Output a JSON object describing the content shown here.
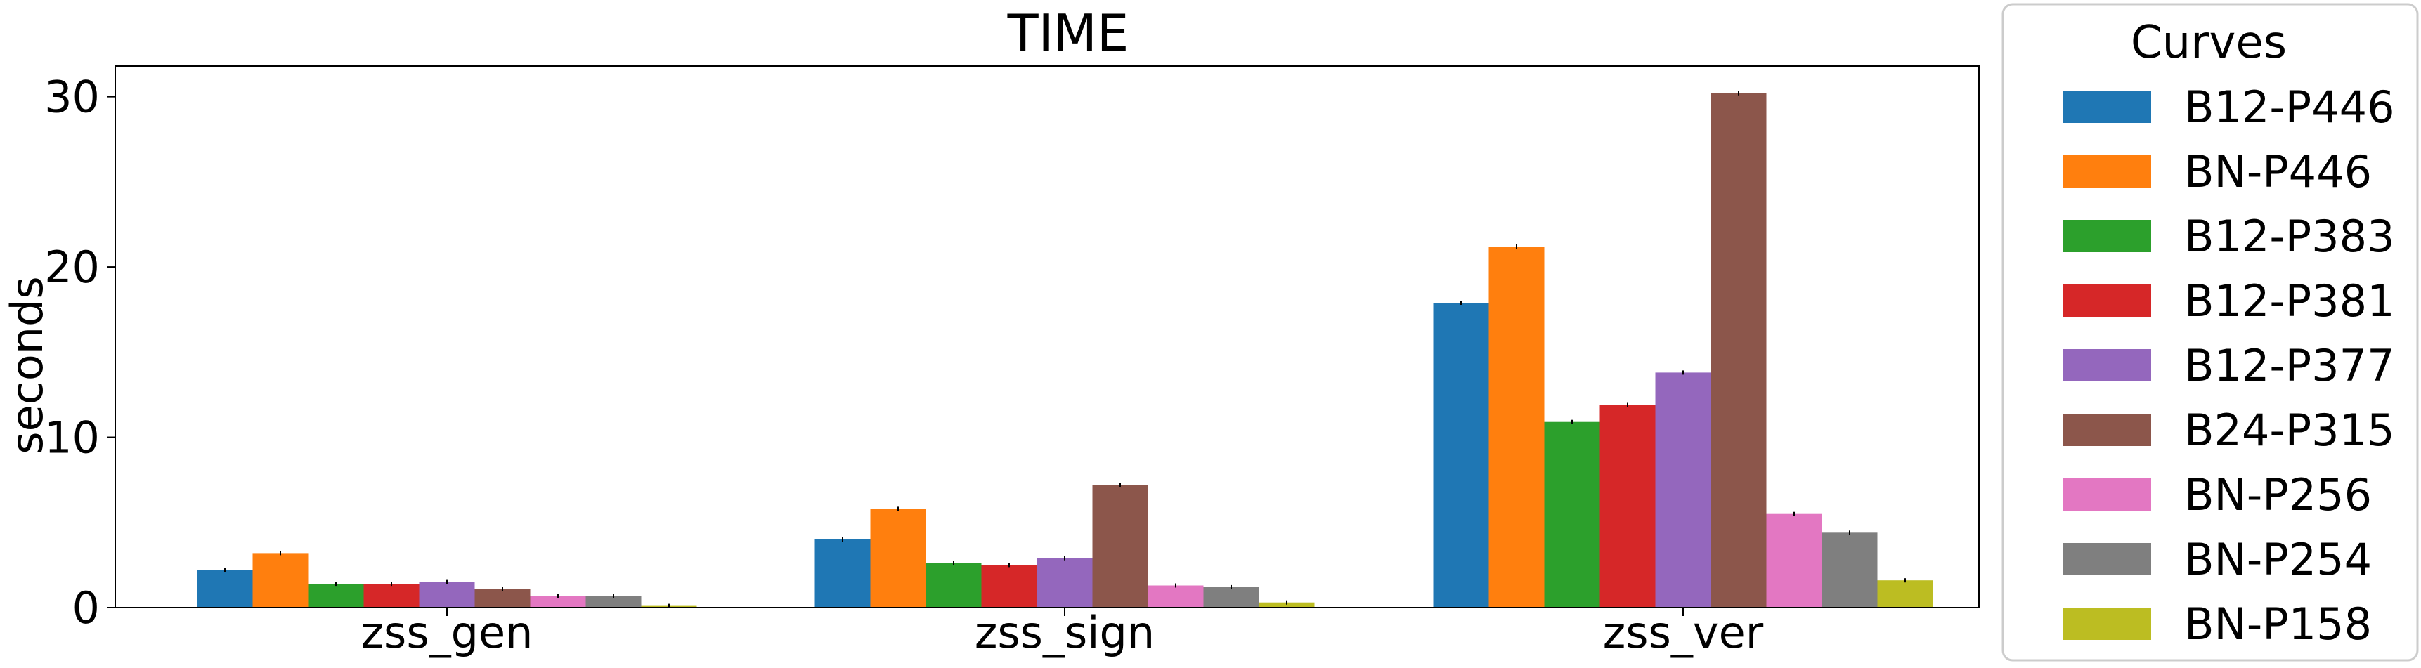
{
  "chart_data": {
    "type": "bar",
    "title": "TIME",
    "xlabel": "",
    "ylabel": "seconds",
    "ylim": [
      0,
      31.8
    ],
    "yticks": [
      0,
      10,
      20,
      30
    ],
    "categories": [
      "zss_gen",
      "zss_sign",
      "zss_ver"
    ],
    "legend": {
      "title": "Curves",
      "placement": "right-outside"
    },
    "grid": false,
    "series": [
      {
        "name": "B12-P446",
        "color": "#1f77b4",
        "values": [
          2.2,
          4.0,
          17.9
        ]
      },
      {
        "name": "BN-P446",
        "color": "#ff7f0e",
        "values": [
          3.2,
          5.8,
          21.2
        ]
      },
      {
        "name": "B12-P383",
        "color": "#2ca02c",
        "values": [
          1.4,
          2.6,
          10.9
        ]
      },
      {
        "name": "B12-P381",
        "color": "#d62728",
        "values": [
          1.4,
          2.5,
          11.9
        ]
      },
      {
        "name": "B12-P377",
        "color": "#9467bd",
        "values": [
          1.5,
          2.9,
          13.8
        ]
      },
      {
        "name": "B24-P315",
        "color": "#8c564b",
        "values": [
          1.1,
          7.2,
          30.2
        ]
      },
      {
        "name": "BN-P256",
        "color": "#e377c2",
        "values": [
          0.7,
          1.3,
          5.5
        ]
      },
      {
        "name": "BN-P254",
        "color": "#7f7f7f",
        "values": [
          0.7,
          1.2,
          4.4
        ]
      },
      {
        "name": "BN-P158",
        "color": "#bcbd22",
        "values": [
          0.1,
          0.3,
          1.6
        ]
      }
    ]
  }
}
